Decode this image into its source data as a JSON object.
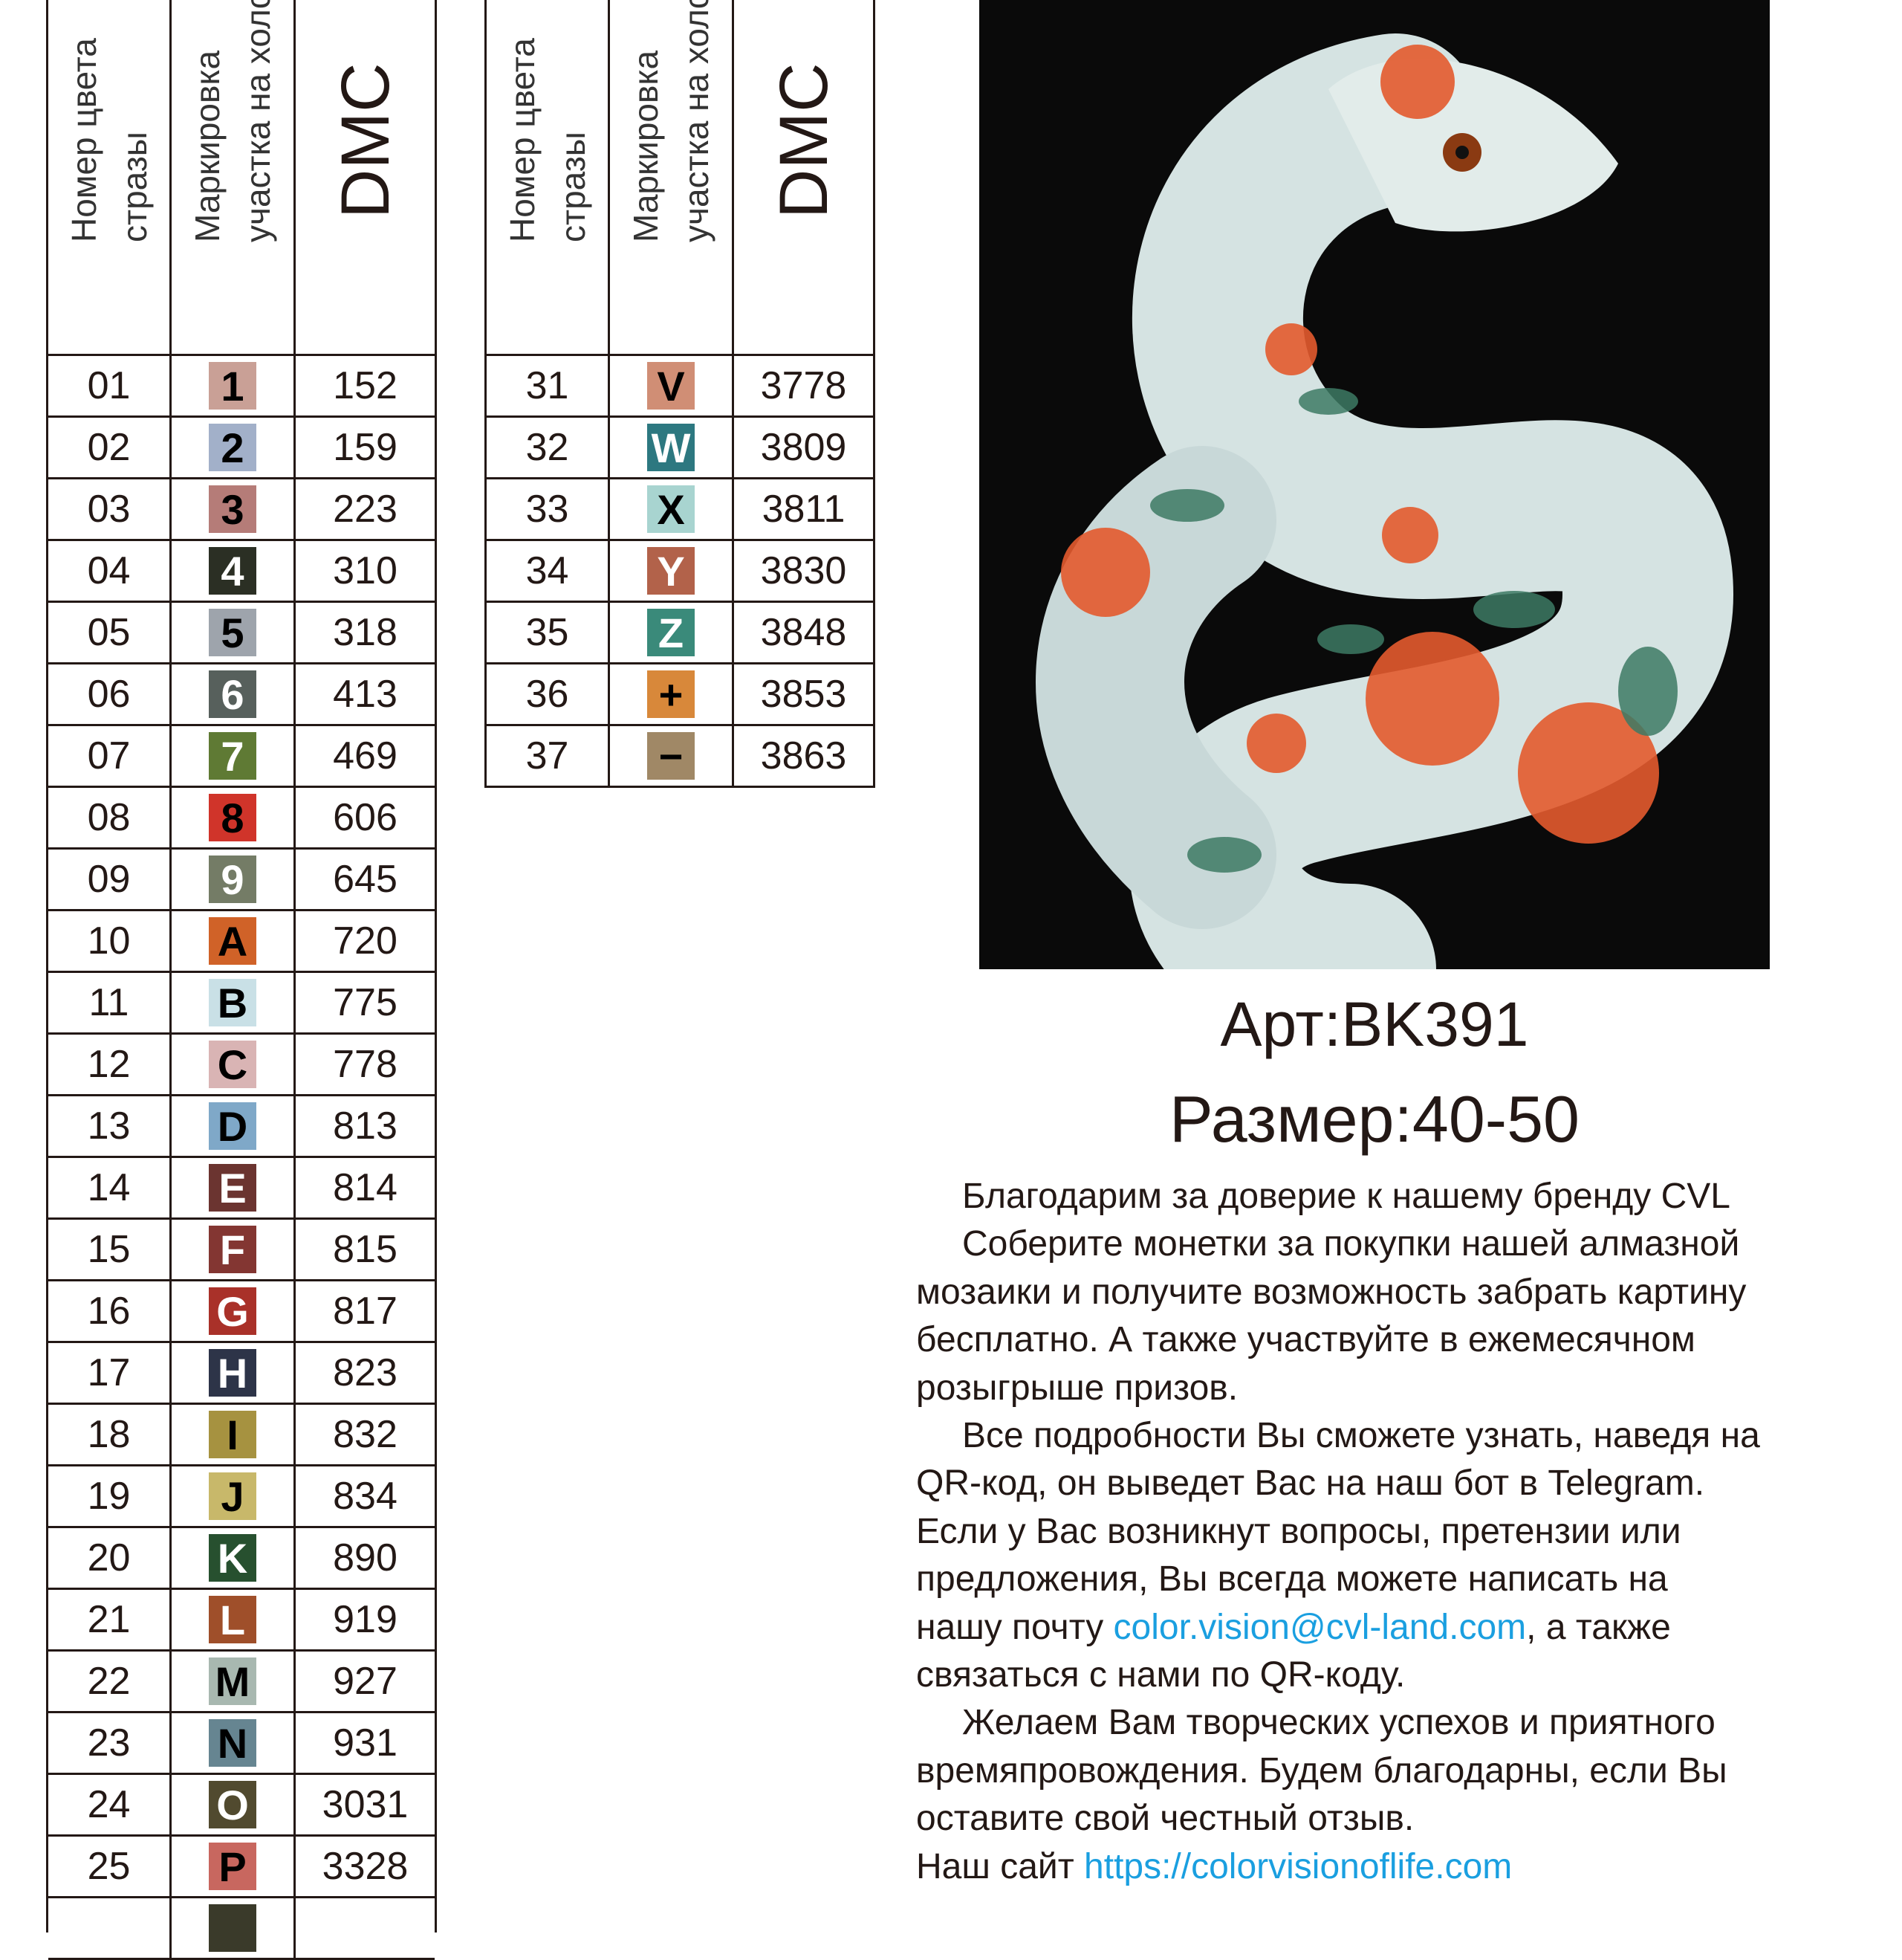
{
  "headers": {
    "col1_line1": "Номер цвета",
    "col1_line2": "стразы",
    "col2_line1": "Маркировка",
    "col2_line2": "участка на холсте",
    "col3": "DMC"
  },
  "left_table": [
    {
      "num": "01",
      "mark": "1",
      "dmc": "152",
      "bg": "#c9a096",
      "fg": "#000000"
    },
    {
      "num": "02",
      "mark": "2",
      "dmc": "159",
      "bg": "#a2b0c9",
      "fg": "#000000"
    },
    {
      "num": "03",
      "mark": "3",
      "dmc": "223",
      "bg": "#b57c78",
      "fg": "#000000"
    },
    {
      "num": "04",
      "mark": "4",
      "dmc": "310",
      "bg": "#2b2f24",
      "fg": "#ffffff"
    },
    {
      "num": "05",
      "mark": "5",
      "dmc": "318",
      "bg": "#9ea4ac",
      "fg": "#000000"
    },
    {
      "num": "06",
      "mark": "6",
      "dmc": "413",
      "bg": "#57605c",
      "fg": "#ffffff"
    },
    {
      "num": "07",
      "mark": "7",
      "dmc": "469",
      "bg": "#5f7a34",
      "fg": "#ffffff"
    },
    {
      "num": "08",
      "mark": "8",
      "dmc": "606",
      "bg": "#d0342a",
      "fg": "#000000"
    },
    {
      "num": "09",
      "mark": "9",
      "dmc": "645",
      "bg": "#747c66",
      "fg": "#ffffff"
    },
    {
      "num": "10",
      "mark": "A",
      "dmc": "720",
      "bg": "#d06228",
      "fg": "#000000"
    },
    {
      "num": "11",
      "mark": "B",
      "dmc": "775",
      "bg": "#c9e0e6",
      "fg": "#000000"
    },
    {
      "num": "12",
      "mark": "C",
      "dmc": "778",
      "bg": "#d9b4b4",
      "fg": "#000000"
    },
    {
      "num": "13",
      "mark": "D",
      "dmc": "813",
      "bg": "#7fa8c8",
      "fg": "#000000"
    },
    {
      "num": "14",
      "mark": "E",
      "dmc": "814",
      "bg": "#6b3430",
      "fg": "#ffffff"
    },
    {
      "num": "15",
      "mark": "F",
      "dmc": "815",
      "bg": "#833632",
      "fg": "#ffffff"
    },
    {
      "num": "16",
      "mark": "G",
      "dmc": "817",
      "bg": "#a93129",
      "fg": "#ffffff"
    },
    {
      "num": "17",
      "mark": "H",
      "dmc": "823",
      "bg": "#2d3448",
      "fg": "#ffffff"
    },
    {
      "num": "18",
      "mark": "I",
      "dmc": "832",
      "bg": "#a69240",
      "fg": "#000000"
    },
    {
      "num": "19",
      "mark": "J",
      "dmc": "834",
      "bg": "#c8b86a",
      "fg": "#000000"
    },
    {
      "num": "20",
      "mark": "K",
      "dmc": "890",
      "bg": "#27502f",
      "fg": "#ffffff"
    },
    {
      "num": "21",
      "mark": "L",
      "dmc": "919",
      "bg": "#9f4f2a",
      "fg": "#ffffff"
    },
    {
      "num": "22",
      "mark": "M",
      "dmc": "927",
      "bg": "#a8b8b0",
      "fg": "#000000"
    },
    {
      "num": "23",
      "mark": "N",
      "dmc": "931",
      "bg": "#668591",
      "fg": "#000000"
    },
    {
      "num": "24",
      "mark": "O",
      "dmc": "3031",
      "bg": "#514a2f",
      "fg": "#ffffff"
    },
    {
      "num": "25",
      "mark": "P",
      "dmc": "3328",
      "bg": "#c8675f",
      "fg": "#000000"
    },
    {
      "num": "",
      "mark": "",
      "dmc": "",
      "bg": "#3a3a2a",
      "fg": "#ffffff"
    }
  ],
  "right_table": [
    {
      "num": "31",
      "mark": "V",
      "dmc": "3778",
      "bg": "#d08e75",
      "fg": "#000000"
    },
    {
      "num": "32",
      "mark": "W",
      "dmc": "3809",
      "bg": "#2d7880",
      "fg": "#ffffff"
    },
    {
      "num": "33",
      "mark": "X",
      "dmc": "3811",
      "bg": "#a8d4d0",
      "fg": "#000000"
    },
    {
      "num": "34",
      "mark": "Y",
      "dmc": "3830",
      "bg": "#b2624a",
      "fg": "#ffffff"
    },
    {
      "num": "35",
      "mark": "Z",
      "dmc": "3848",
      "bg": "#3a8a7a",
      "fg": "#ffffff"
    },
    {
      "num": "36",
      "mark": "+",
      "dmc": "3853",
      "bg": "#d8883a",
      "fg": "#000000"
    },
    {
      "num": "37",
      "mark": "−",
      "dmc": "3863",
      "bg": "#a08866",
      "fg": "#000000"
    }
  ],
  "product": {
    "article": "Арт:BK391",
    "size": "Размер:40-50"
  },
  "message": {
    "l1": "Благодарим за доверие к нашему бренду CVL",
    "l2": "Соберите монетки за покупки нашей алмазной",
    "l3": "мозаики и получите возможность забрать картину",
    "l4": "бесплатно. А также участвуйте в ежемесячном",
    "l5": "розыгрыше призов.",
    "l6": "Все подробности Вы сможете узнать, наведя на",
    "l7": "QR-код, он выведет Вас на наш бот в Telegram.",
    "l8": "Если у Вас возникнут вопросы, претензии или",
    "l9": "предложения, Вы всегда можете написать на",
    "l10_pre": "нашу почту ",
    "email": "color.vision@cvl-land.com",
    "l10_post": ", а также",
    "l11": "связаться с нами по QR-коду.",
    "l12": "Желаем Вам творческих успехов и приятного",
    "l13": "времяпровождения. Будем благодарны, если Вы",
    "l14": "оставите свой честный отзыв.",
    "site_pre": "Наш сайт ",
    "site": "https://colorvisionoflife.com"
  },
  "colors": {
    "link": "#1a9fe0",
    "art_background": "#0a0a0a"
  }
}
